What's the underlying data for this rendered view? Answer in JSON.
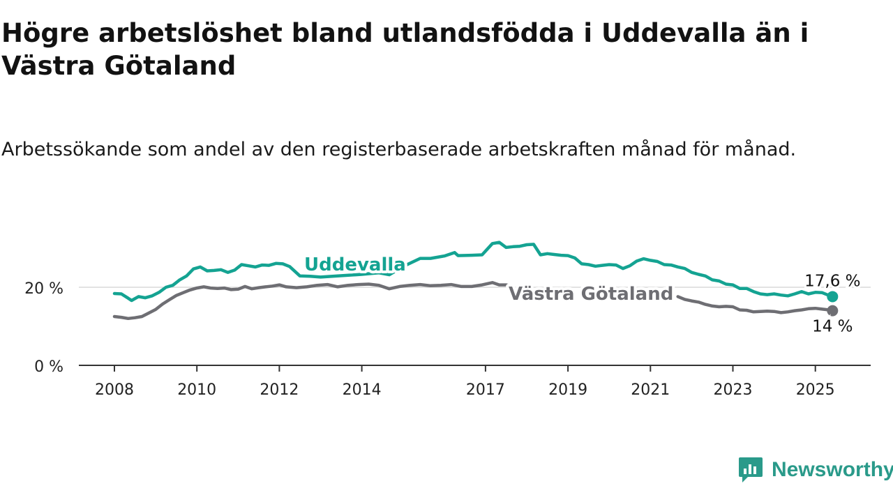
{
  "header": {
    "title": "Högre arbetslöshet bland utlandsfödda i Uddevalla än i Västra Götaland",
    "subtitle": "Arbetssökande som andel av den registerbaserade arbetskraften månad för månad."
  },
  "brand": {
    "name": "Newsworthy",
    "icon": "newsworthy-logo-icon",
    "color": "#2a9a8a"
  },
  "chart_data": {
    "type": "line",
    "x_ticks": [
      "2008",
      "2010",
      "2012",
      "2014",
      "2017",
      "2019",
      "2021",
      "2023",
      "2025"
    ],
    "y_ticks": [
      {
        "value": 0,
        "label": "0 %"
      },
      {
        "value": 20,
        "label": "20 %"
      }
    ],
    "ylim": [
      0,
      32
    ],
    "grid": "horizontal",
    "series": [
      {
        "name": "Uddevalla",
        "color": "#14a392",
        "end_label": "17,6 %",
        "points": [
          [
            "2008-01",
            18.4
          ],
          [
            "2008-03",
            18.3
          ],
          [
            "2008-05",
            17.2
          ],
          [
            "2008-06",
            16.6
          ],
          [
            "2008-08",
            17.6
          ],
          [
            "2008-10",
            17.3
          ],
          [
            "2008-12",
            17.8
          ],
          [
            "2009-02",
            18.7
          ],
          [
            "2009-04",
            20.0
          ],
          [
            "2009-06",
            20.5
          ],
          [
            "2009-08",
            21.9
          ],
          [
            "2009-10",
            22.9
          ],
          [
            "2009-12",
            24.7
          ],
          [
            "2010-02",
            25.2
          ],
          [
            "2010-04",
            24.2
          ],
          [
            "2010-06",
            24.3
          ],
          [
            "2010-08",
            24.5
          ],
          [
            "2010-10",
            23.8
          ],
          [
            "2010-12",
            24.4
          ],
          [
            "2011-02",
            25.8
          ],
          [
            "2011-04",
            25.5
          ],
          [
            "2011-06",
            25.2
          ],
          [
            "2011-08",
            25.7
          ],
          [
            "2011-10",
            25.6
          ],
          [
            "2011-12",
            26.1
          ],
          [
            "2012-02",
            26.0
          ],
          [
            "2012-04",
            25.3
          ],
          [
            "2012-07",
            22.9
          ],
          [
            "2012-10",
            22.8
          ],
          [
            "2013-01",
            22.6
          ],
          [
            "2013-06",
            22.9
          ],
          [
            "2014-01",
            23.3
          ],
          [
            "2014-06",
            23.7
          ],
          [
            "2014-09",
            23.2
          ],
          [
            "2015-01",
            25.3
          ],
          [
            "2015-06",
            27.4
          ],
          [
            "2015-09",
            27.4
          ],
          [
            "2016-01",
            28.0
          ],
          [
            "2016-04",
            28.9
          ],
          [
            "2016-05",
            28.1
          ],
          [
            "2016-09",
            28.2
          ],
          [
            "2016-12",
            28.3
          ],
          [
            "2017-03",
            31.2
          ],
          [
            "2017-05",
            31.5
          ],
          [
            "2017-07",
            30.2
          ],
          [
            "2017-09",
            30.4
          ],
          [
            "2017-11",
            30.5
          ],
          [
            "2018-01",
            30.9
          ],
          [
            "2018-03",
            31.0
          ],
          [
            "2018-05",
            28.3
          ],
          [
            "2018-07",
            28.6
          ],
          [
            "2018-09",
            28.4
          ],
          [
            "2018-11",
            28.2
          ],
          [
            "2019-01",
            28.1
          ],
          [
            "2019-03",
            27.5
          ],
          [
            "2019-05",
            26.0
          ],
          [
            "2019-07",
            25.8
          ],
          [
            "2019-09",
            25.4
          ],
          [
            "2019-11",
            25.6
          ],
          [
            "2020-01",
            25.8
          ],
          [
            "2020-03",
            25.7
          ],
          [
            "2020-05",
            24.8
          ],
          [
            "2020-07",
            25.5
          ],
          [
            "2020-09",
            26.7
          ],
          [
            "2020-11",
            27.3
          ],
          [
            "2021-01",
            26.9
          ],
          [
            "2021-03",
            26.6
          ],
          [
            "2021-05",
            25.8
          ],
          [
            "2021-07",
            25.7
          ],
          [
            "2021-09",
            25.2
          ],
          [
            "2021-11",
            24.8
          ],
          [
            "2022-01",
            23.8
          ],
          [
            "2022-03",
            23.3
          ],
          [
            "2022-05",
            22.9
          ],
          [
            "2022-07",
            21.9
          ],
          [
            "2022-09",
            21.6
          ],
          [
            "2022-11",
            20.8
          ],
          [
            "2023-01",
            20.6
          ],
          [
            "2023-03",
            19.7
          ],
          [
            "2023-05",
            19.7
          ],
          [
            "2023-07",
            18.9
          ],
          [
            "2023-09",
            18.3
          ],
          [
            "2023-11",
            18.1
          ],
          [
            "2024-01",
            18.3
          ],
          [
            "2024-03",
            18.0
          ],
          [
            "2024-05",
            17.8
          ],
          [
            "2024-07",
            18.3
          ],
          [
            "2024-09",
            18.9
          ],
          [
            "2024-11",
            18.3
          ],
          [
            "2025-01",
            18.7
          ],
          [
            "2025-03",
            18.6
          ],
          [
            "2025-05",
            17.9
          ],
          [
            "2025-06",
            17.6
          ]
        ]
      },
      {
        "name": "Västra Götaland",
        "color": "#6e6e73",
        "end_label": "14 %",
        "points": [
          [
            "2008-01",
            12.5
          ],
          [
            "2008-03",
            12.3
          ],
          [
            "2008-05",
            12.0
          ],
          [
            "2008-07",
            12.2
          ],
          [
            "2008-09",
            12.5
          ],
          [
            "2008-11",
            13.4
          ],
          [
            "2009-01",
            14.3
          ],
          [
            "2009-03",
            15.7
          ],
          [
            "2009-05",
            16.8
          ],
          [
            "2009-07",
            17.9
          ],
          [
            "2009-09",
            18.6
          ],
          [
            "2009-11",
            19.3
          ],
          [
            "2010-01",
            19.8
          ],
          [
            "2010-03",
            20.1
          ],
          [
            "2010-05",
            19.8
          ],
          [
            "2010-07",
            19.7
          ],
          [
            "2010-09",
            19.8
          ],
          [
            "2010-11",
            19.4
          ],
          [
            "2011-01",
            19.5
          ],
          [
            "2011-03",
            20.2
          ],
          [
            "2011-05",
            19.6
          ],
          [
            "2011-07",
            19.9
          ],
          [
            "2011-09",
            20.1
          ],
          [
            "2011-11",
            20.3
          ],
          [
            "2012-01",
            20.6
          ],
          [
            "2012-03",
            20.1
          ],
          [
            "2012-06",
            19.9
          ],
          [
            "2012-09",
            20.1
          ],
          [
            "2012-12",
            20.5
          ],
          [
            "2013-03",
            20.7
          ],
          [
            "2013-06",
            20.1
          ],
          [
            "2013-09",
            20.5
          ],
          [
            "2013-12",
            20.7
          ],
          [
            "2014-03",
            20.8
          ],
          [
            "2014-06",
            20.5
          ],
          [
            "2014-09",
            19.6
          ],
          [
            "2014-12",
            20.2
          ],
          [
            "2015-03",
            20.5
          ],
          [
            "2015-06",
            20.7
          ],
          [
            "2015-09",
            20.4
          ],
          [
            "2015-12",
            20.5
          ],
          [
            "2016-03",
            20.7
          ],
          [
            "2016-06",
            20.2
          ],
          [
            "2016-09",
            20.2
          ],
          [
            "2016-12",
            20.6
          ],
          [
            "2017-03",
            21.2
          ],
          [
            "2017-05",
            20.6
          ],
          [
            "2017-07",
            20.6
          ],
          [
            "2017-09",
            20.2
          ]
        ],
        "points_after_label": [
          [
            "2021-09",
            17.6
          ],
          [
            "2021-11",
            16.9
          ],
          [
            "2022-01",
            16.5
          ],
          [
            "2022-03",
            16.2
          ],
          [
            "2022-05",
            15.6
          ],
          [
            "2022-07",
            15.2
          ],
          [
            "2022-09",
            15.0
          ],
          [
            "2022-11",
            15.1
          ],
          [
            "2023-01",
            15.0
          ],
          [
            "2023-03",
            14.2
          ],
          [
            "2023-05",
            14.1
          ],
          [
            "2023-07",
            13.7
          ],
          [
            "2023-09",
            13.8
          ],
          [
            "2023-11",
            13.9
          ],
          [
            "2024-01",
            13.8
          ],
          [
            "2024-03",
            13.5
          ],
          [
            "2024-05",
            13.7
          ],
          [
            "2024-07",
            14.0
          ],
          [
            "2024-09",
            14.2
          ],
          [
            "2024-11",
            14.5
          ],
          [
            "2025-01",
            14.6
          ],
          [
            "2025-03",
            14.4
          ],
          [
            "2025-05",
            14.2
          ],
          [
            "2025-06",
            14.0
          ]
        ]
      }
    ]
  }
}
